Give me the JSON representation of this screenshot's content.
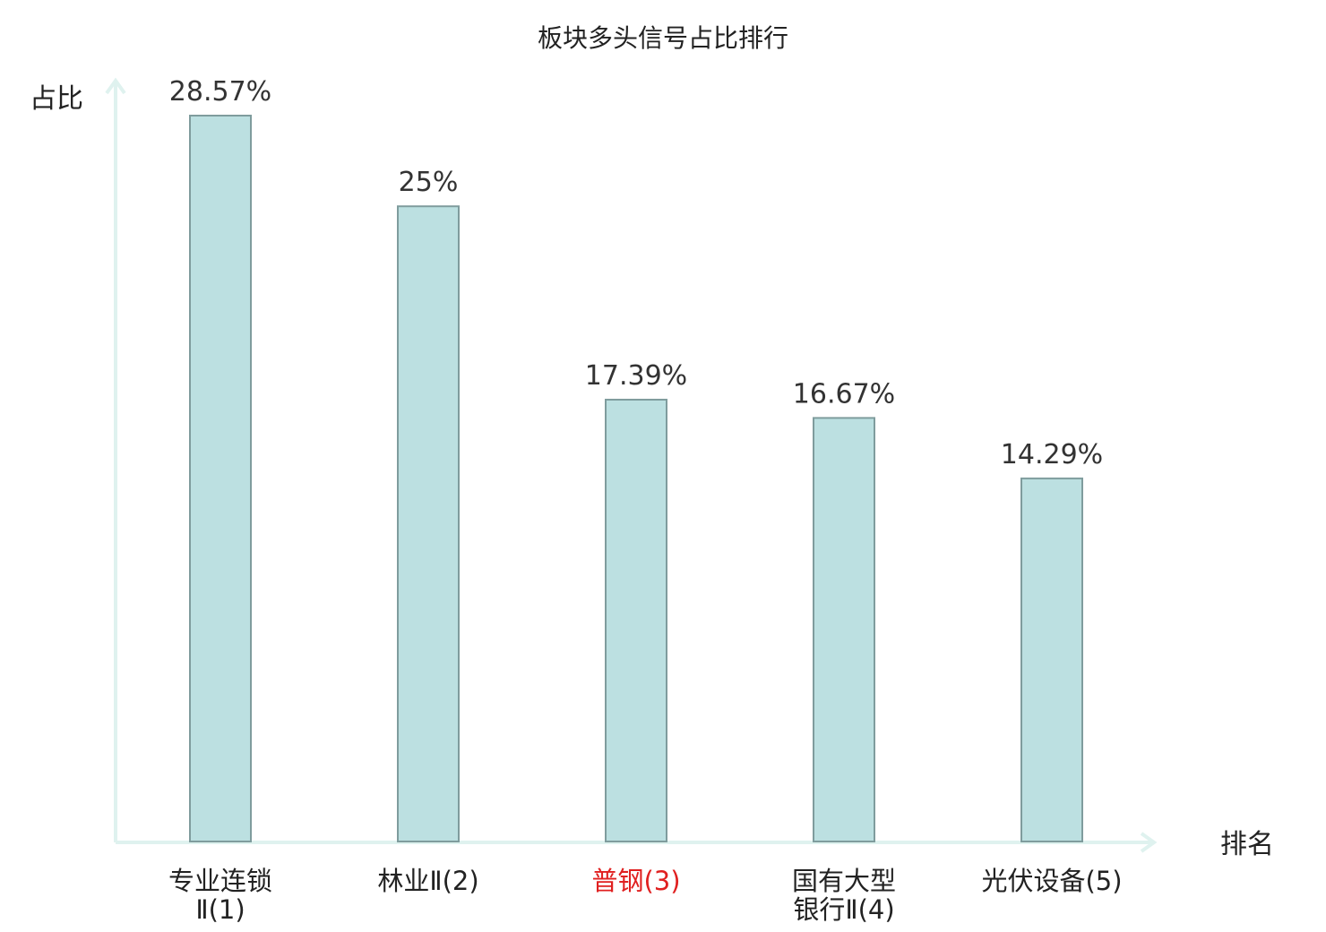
{
  "chart_data": {
    "type": "bar",
    "title": "板块多头信号占比排行",
    "ylabel": "占比",
    "xlabel": "排名",
    "ylim": [
      0,
      30
    ],
    "grid": false,
    "categories": [
      [
        "专业连锁",
        "Ⅱ(1)"
      ],
      [
        "林业Ⅱ(2)"
      ],
      [
        "普钢(3)"
      ],
      [
        "国有大型",
        "银行Ⅱ(4)"
      ],
      [
        "光伏设备(5)"
      ]
    ],
    "values": [
      28.57,
      25,
      17.39,
      16.67,
      14.29
    ],
    "value_labels": [
      "28.57%",
      "25%",
      "17.39%",
      "16.67%",
      "14.29%"
    ],
    "highlight_index": 2
  },
  "colors": {
    "bar_fill": "#bce0e1",
    "bar_stroke": "#7f9c9d",
    "axis": "#dff2ef",
    "highlight_text": "#e02020",
    "text": "#222222"
  }
}
